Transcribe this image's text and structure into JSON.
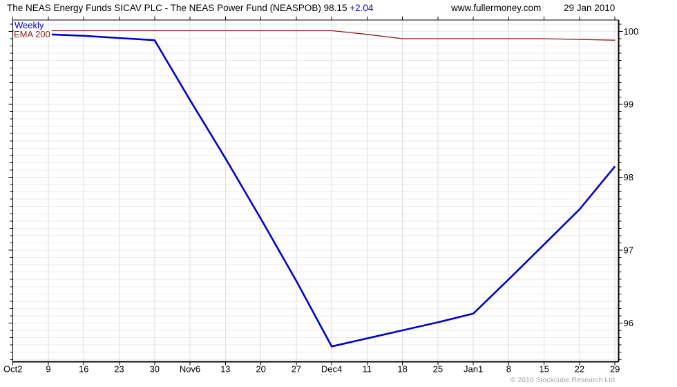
{
  "header": {
    "title": "The NEAS Energy Funds SICAV PLC - The NEAS Power Fund (NEASPOB) 98.15",
    "change": "+2.04",
    "website": "www.fullermoney.com",
    "date": "29 Jan 2010"
  },
  "legend": {
    "timeframe": "Weekly",
    "ema_label": "EMA 200"
  },
  "footer": {
    "copyright": "© 2010 Stockcube Research Ltd"
  },
  "colors": {
    "price_line": "#0000cd",
    "ema_line": "#8b1a1a",
    "change_text": "#0000cd",
    "weekly_text": "#0000cd",
    "ema_text": "#8b1a1a",
    "grid_h": "#eaeaea",
    "grid_v": "#dedede",
    "frame": "#000000",
    "axis_text": "#000000",
    "copyright_text": "#a4a4a4"
  },
  "chart_data": {
    "type": "line",
    "title": "The NEAS Energy Funds SICAV PLC - The NEAS Power Fund (NEASPOB)",
    "subtitle": "Weekly with EMA 200",
    "last_price": 98.15,
    "change": 2.04,
    "date": "29 Jan 2010",
    "grid": "on",
    "legend_position": "top-left",
    "x_labels": [
      "Oct2",
      "9",
      "16",
      "23",
      "30",
      "Nov6",
      "13",
      "20",
      "27",
      "Dec4",
      "11",
      "18",
      "25",
      "Jan1",
      "8",
      "15",
      "22",
      "29"
    ],
    "y_ticks": [
      100,
      99,
      98,
      97,
      96
    ],
    "ylim": [
      95.47,
      100.16
    ],
    "minor_y_step": 0.1,
    "series": [
      {
        "name": "NEAS Power Fund weekly close",
        "role": "price",
        "color_key": "price_line",
        "start_index": 1,
        "values": [
          99.96,
          99.94,
          99.91,
          99.88,
          99.06,
          98.26,
          97.43,
          96.58,
          95.68,
          95.79,
          95.9,
          96.01,
          96.13,
          96.6,
          97.08,
          97.56,
          98.15
        ]
      },
      {
        "name": "EMA 200",
        "role": "ema",
        "color_key": "ema_line",
        "start_index": 0,
        "values": [
          100.01,
          100.01,
          100.01,
          100.01,
          100.01,
          100.01,
          100.01,
          100.01,
          100.01,
          100.01,
          99.96,
          99.9,
          99.9,
          99.9,
          99.9,
          99.9,
          99.89,
          99.88
        ]
      }
    ]
  }
}
